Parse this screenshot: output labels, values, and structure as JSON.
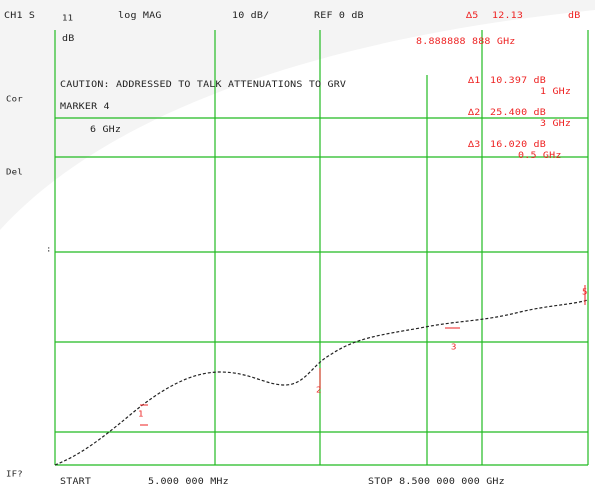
{
  "colors": {
    "grid": "#22bb22",
    "trace": "#222222",
    "marker": "#ee2222",
    "background": "#ffffff",
    "swoosh": "#f2f2f2"
  },
  "header": {
    "channel": "CH1 S",
    "channel_sub": "11",
    "format": "log MAG",
    "scale": "10 dB/",
    "reference": "REF 0 dB",
    "marker_label": "∆5",
    "marker_value": "12.13",
    "marker_unit": "dB"
  },
  "left_labels": {
    "db": "dB",
    "row2": "Cor",
    "row3": "Del",
    "row4": ":",
    "bottom": "IF?"
  },
  "marker_info": {
    "freq": "8.888888 888 GHz",
    "readouts": [
      {
        "id": "∆1",
        "value": "10.397 dB",
        "freq": "1 GHz"
      },
      {
        "id": "∆2",
        "value": "25.400 dB",
        "freq": "3 GHz"
      },
      {
        "id": "∆3",
        "value": "16.020 dB",
        "freq": "0.5 GHz"
      }
    ]
  },
  "messages": {
    "caution": "CAUTION: ADDRESSED TO TALK ATTENUATIONS TO GRV",
    "marker": "MARKER 4",
    "marker_freq": "6 GHz"
  },
  "footer": {
    "start": "START",
    "start_value": "5.000 000 MHz",
    "stop": "STOP 8.500 000 000 GHz"
  },
  "markers": [
    {
      "label": "1",
      "x_fraction": 0.17,
      "y_db_fraction": 0.83
    },
    {
      "label": "2",
      "x_fraction": 0.49,
      "y_db_fraction": 0.66
    },
    {
      "label": "3",
      "x_fraction": 0.73,
      "y_db_fraction": 0.53
    },
    {
      "label": "5",
      "x_fraction": 1.0,
      "y_db_fraction": 0.4
    }
  ]
}
